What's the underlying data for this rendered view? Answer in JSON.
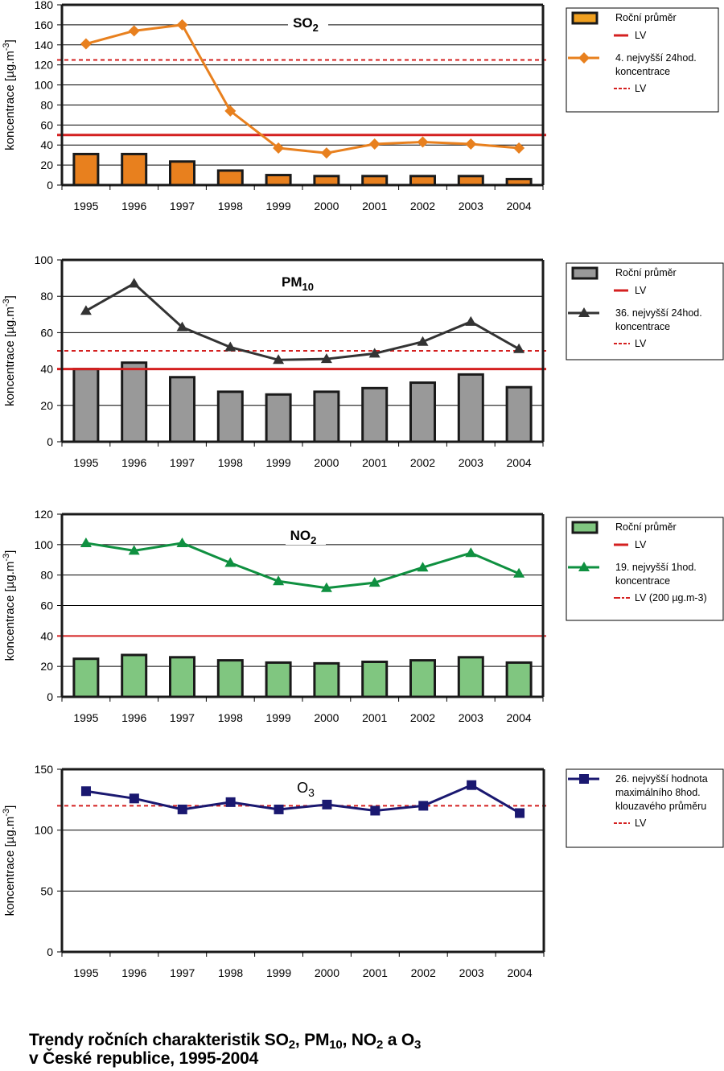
{
  "caption": {
    "line1_parts": [
      "Trendy ročních charakteristik SO",
      "2",
      ", PM",
      "10",
      ", NO",
      "2",
      " a O",
      "3"
    ],
    "line2": "v České republice, 1995-2004"
  },
  "colors": {
    "lv_red": "#d42020",
    "so2_bar": "#e8801e",
    "so2_line": "#e8801e",
    "pm10_bar": "#999999",
    "pm10_line": "#333333",
    "no2_bar": "#80c680",
    "no2_line": "#0f9040",
    "o3_line": "#1a1870"
  },
  "chart_data": [
    {
      "type": "bar",
      "id": "so2",
      "title": "SO",
      "title_sub": "2",
      "ylabel": "koncentrace [µg.m",
      "ylabel_sup": "-3",
      "ylabel_end": "]",
      "xlabel": "",
      "categories": [
        "1995",
        "1996",
        "1997",
        "1998",
        "1999",
        "2000",
        "2001",
        "2002",
        "2003",
        "2004"
      ],
      "ylim": [
        0,
        180
      ],
      "yticks": [
        0,
        20,
        40,
        60,
        80,
        100,
        120,
        140,
        160,
        180
      ],
      "grid": true,
      "series": [
        {
          "name": "Roční průměr",
          "kind": "bar",
          "values": [
            31,
            31,
            23.5,
            14.5,
            10,
            9,
            9,
            9,
            9,
            6
          ]
        },
        {
          "name": "4. nejvyšší 24hod. koncentrace",
          "kind": "line",
          "marker": "diamond",
          "values": [
            141,
            154,
            160,
            74,
            37,
            32,
            41,
            43,
            41,
            37
          ]
        }
      ],
      "reference_lines": [
        {
          "name": "LV",
          "value": 50,
          "style": "solid",
          "legend_group": "bar"
        },
        {
          "name": "LV",
          "value": 125,
          "style": "dashed",
          "legend_group": "line"
        }
      ],
      "legend": {
        "placement": "right",
        "items": [
          {
            "label": "Roční průměr",
            "kind": "bar"
          },
          {
            "label": "LV",
            "kind": "solid"
          },
          {
            "label": "4. nejvyšší 24hod.",
            "label2": "koncentrace",
            "kind": "line"
          },
          {
            "label": "LV",
            "kind": "dashed"
          }
        ]
      }
    },
    {
      "type": "bar",
      "id": "pm10",
      "title": "PM",
      "title_sub": "10",
      "ylabel": "koncentrace [µg.m",
      "ylabel_sup": "-3",
      "ylabel_end": "]",
      "xlabel": "",
      "categories": [
        "1995",
        "1996",
        "1997",
        "1998",
        "1999",
        "2000",
        "2001",
        "2002",
        "2003",
        "2004"
      ],
      "ylim": [
        0,
        100
      ],
      "yticks": [
        0,
        20,
        40,
        60,
        80,
        100
      ],
      "grid": true,
      "series": [
        {
          "name": "Roční průměr",
          "kind": "bar",
          "values": [
            40,
            43.5,
            35.5,
            27.5,
            26,
            27.5,
            29.5,
            32.5,
            37,
            30
          ]
        },
        {
          "name": "36. nejvyšší 24hod. koncentrace",
          "kind": "line",
          "marker": "triangle",
          "values": [
            72,
            87,
            63,
            52,
            45,
            45.5,
            48.5,
            55,
            66,
            51
          ]
        }
      ],
      "reference_lines": [
        {
          "name": "LV",
          "value": 40,
          "style": "solid",
          "legend_group": "bar"
        },
        {
          "name": "LV",
          "value": 50,
          "style": "dashed",
          "legend_group": "line"
        }
      ],
      "legend": {
        "placement": "right",
        "items": [
          {
            "label": "Roční průměr",
            "kind": "bar"
          },
          {
            "label": "LV",
            "kind": "solid"
          },
          {
            "label": "36. nejvyšší 24hod.",
            "label2": "koncentrace",
            "kind": "line"
          },
          {
            "label": "LV",
            "kind": "dashed"
          }
        ]
      }
    },
    {
      "type": "bar",
      "id": "no2",
      "title": "NO",
      "title_sub": "2",
      "ylabel": "koncentrace [µg.m",
      "ylabel_sup": "-3",
      "ylabel_end": "]",
      "xlabel": "",
      "categories": [
        "1995",
        "1996",
        "1997",
        "1998",
        "1999",
        "2000",
        "2001",
        "2002",
        "2003",
        "2004"
      ],
      "ylim": [
        0,
        120
      ],
      "yticks": [
        0,
        20,
        40,
        60,
        80,
        100,
        120
      ],
      "grid": true,
      "series": [
        {
          "name": "Roční průměr",
          "kind": "bar",
          "values": [
            25,
            27.5,
            26,
            24,
            22.5,
            22,
            23,
            24,
            26,
            22.5
          ]
        },
        {
          "name": "19. nejvyšší 1hod. koncentrace",
          "kind": "line",
          "marker": "triangle",
          "values": [
            101,
            96,
            101,
            88,
            76,
            71.5,
            75,
            85,
            94.5,
            81
          ]
        }
      ],
      "reference_lines": [
        {
          "name": "LV",
          "value": 40,
          "style": "solid",
          "legend_group": "bar"
        }
      ],
      "legend": {
        "placement": "right",
        "items": [
          {
            "label": "Roční průměr",
            "kind": "bar"
          },
          {
            "label": "LV",
            "kind": "solid"
          },
          {
            "label": "19. nejvyšší 1hod.",
            "label2": "koncentrace",
            "kind": "line"
          },
          {
            "label": "LV (200 µg.m-3)",
            "kind": "dashdot"
          }
        ]
      }
    },
    {
      "type": "line",
      "id": "o3",
      "title": "O",
      "title_sub": "3",
      "ylabel": "koncentrace [µg.m",
      "ylabel_sup": "-3",
      "ylabel_end": "]",
      "xlabel": "",
      "categories": [
        "1995",
        "1996",
        "1997",
        "1998",
        "1999",
        "2000",
        "2001",
        "2002",
        "2003",
        "2004"
      ],
      "ylim": [
        0,
        150
      ],
      "yticks": [
        0,
        50,
        100,
        150
      ],
      "grid": true,
      "series": [
        {
          "name": "26. nejvyšší hodnota maximálního 8hod. klouzavého průměru",
          "kind": "line",
          "marker": "square",
          "values": [
            132,
            126,
            117,
            123,
            117,
            121,
            116,
            120,
            137,
            114
          ]
        }
      ],
      "reference_lines": [
        {
          "name": "LV",
          "value": 120,
          "style": "dashed",
          "legend_group": "line"
        }
      ],
      "legend": {
        "placement": "right",
        "items": [
          {
            "label": "26. nejvyšší hodnota",
            "label2": "maximálního 8hod.",
            "label3": "klouzavého průměru",
            "kind": "line"
          },
          {
            "label": "LV",
            "kind": "dashed"
          }
        ]
      }
    }
  ]
}
